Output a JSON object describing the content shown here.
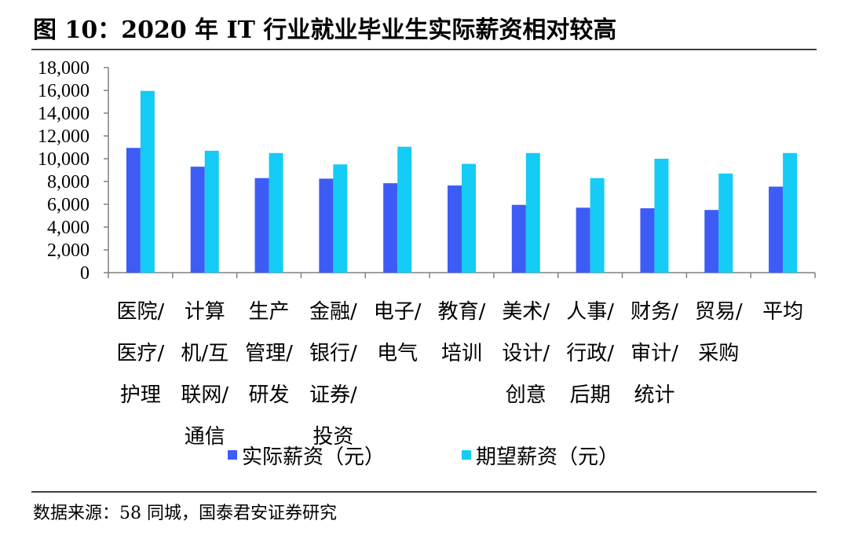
{
  "title": "图 10：2020 年 IT 行业就业毕业生实际薪资相对较高",
  "source": "数据来源：58 同城，国泰君安证券研究",
  "colors": {
    "series_actual": "#3d5cf5",
    "series_expected": "#14ccf5",
    "rule": "#000000",
    "axis": "#808080"
  },
  "chart_data": {
    "type": "bar",
    "categories": [
      [
        "医院/",
        "医疗/",
        "护理"
      ],
      [
        "计算",
        "机/互",
        "联网/",
        "通信"
      ],
      [
        "生产",
        "管理/",
        "研发"
      ],
      [
        "金融/",
        "银行/",
        "证券/",
        "投资"
      ],
      [
        "电子/",
        "电气"
      ],
      [
        "教育/",
        "培训"
      ],
      [
        "美术/",
        "设计/",
        "创意"
      ],
      [
        "人事/",
        "行政/",
        "后期"
      ],
      [
        "财务/",
        "审计/",
        "统计"
      ],
      [
        "贸易/",
        "采购"
      ],
      [
        "平均"
      ]
    ],
    "series": [
      {
        "name": "实际薪资（元）",
        "values": [
          10950,
          9300,
          8300,
          8250,
          7850,
          7650,
          5950,
          5700,
          5650,
          5500,
          7550
        ]
      },
      {
        "name": "期望薪资（元）",
        "values": [
          15950,
          10700,
          10500,
          9500,
          11050,
          9550,
          10500,
          8300,
          10000,
          8700,
          10500
        ]
      }
    ],
    "yticks": [
      "0",
      "2,000",
      "4,000",
      "6,000",
      "8,000",
      "10,000",
      "12,000",
      "14,000",
      "16,000",
      "18,000"
    ],
    "ylim": [
      0,
      18000
    ],
    "grid": false,
    "legend_position": "bottom"
  }
}
